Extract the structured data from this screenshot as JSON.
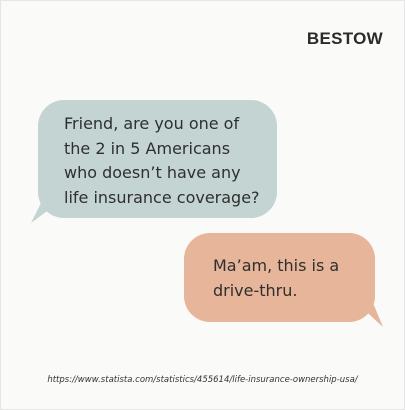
{
  "brand": {
    "logo_text": "BESTOW"
  },
  "conversation": {
    "question": {
      "lines": [
        "Friend, are you one of",
        "the 2 in 5 Americans",
        "who doesn’t have any",
        "life insurance coverage?"
      ],
      "color": "#c3d4d2"
    },
    "reply": {
      "lines": [
        "Ma’am, this is a",
        "drive-thru."
      ],
      "color": "#e6b59a"
    }
  },
  "footer": {
    "source_url": "https://www.statista.com/statistics/455614/life-insurance-ownership-usa/"
  }
}
